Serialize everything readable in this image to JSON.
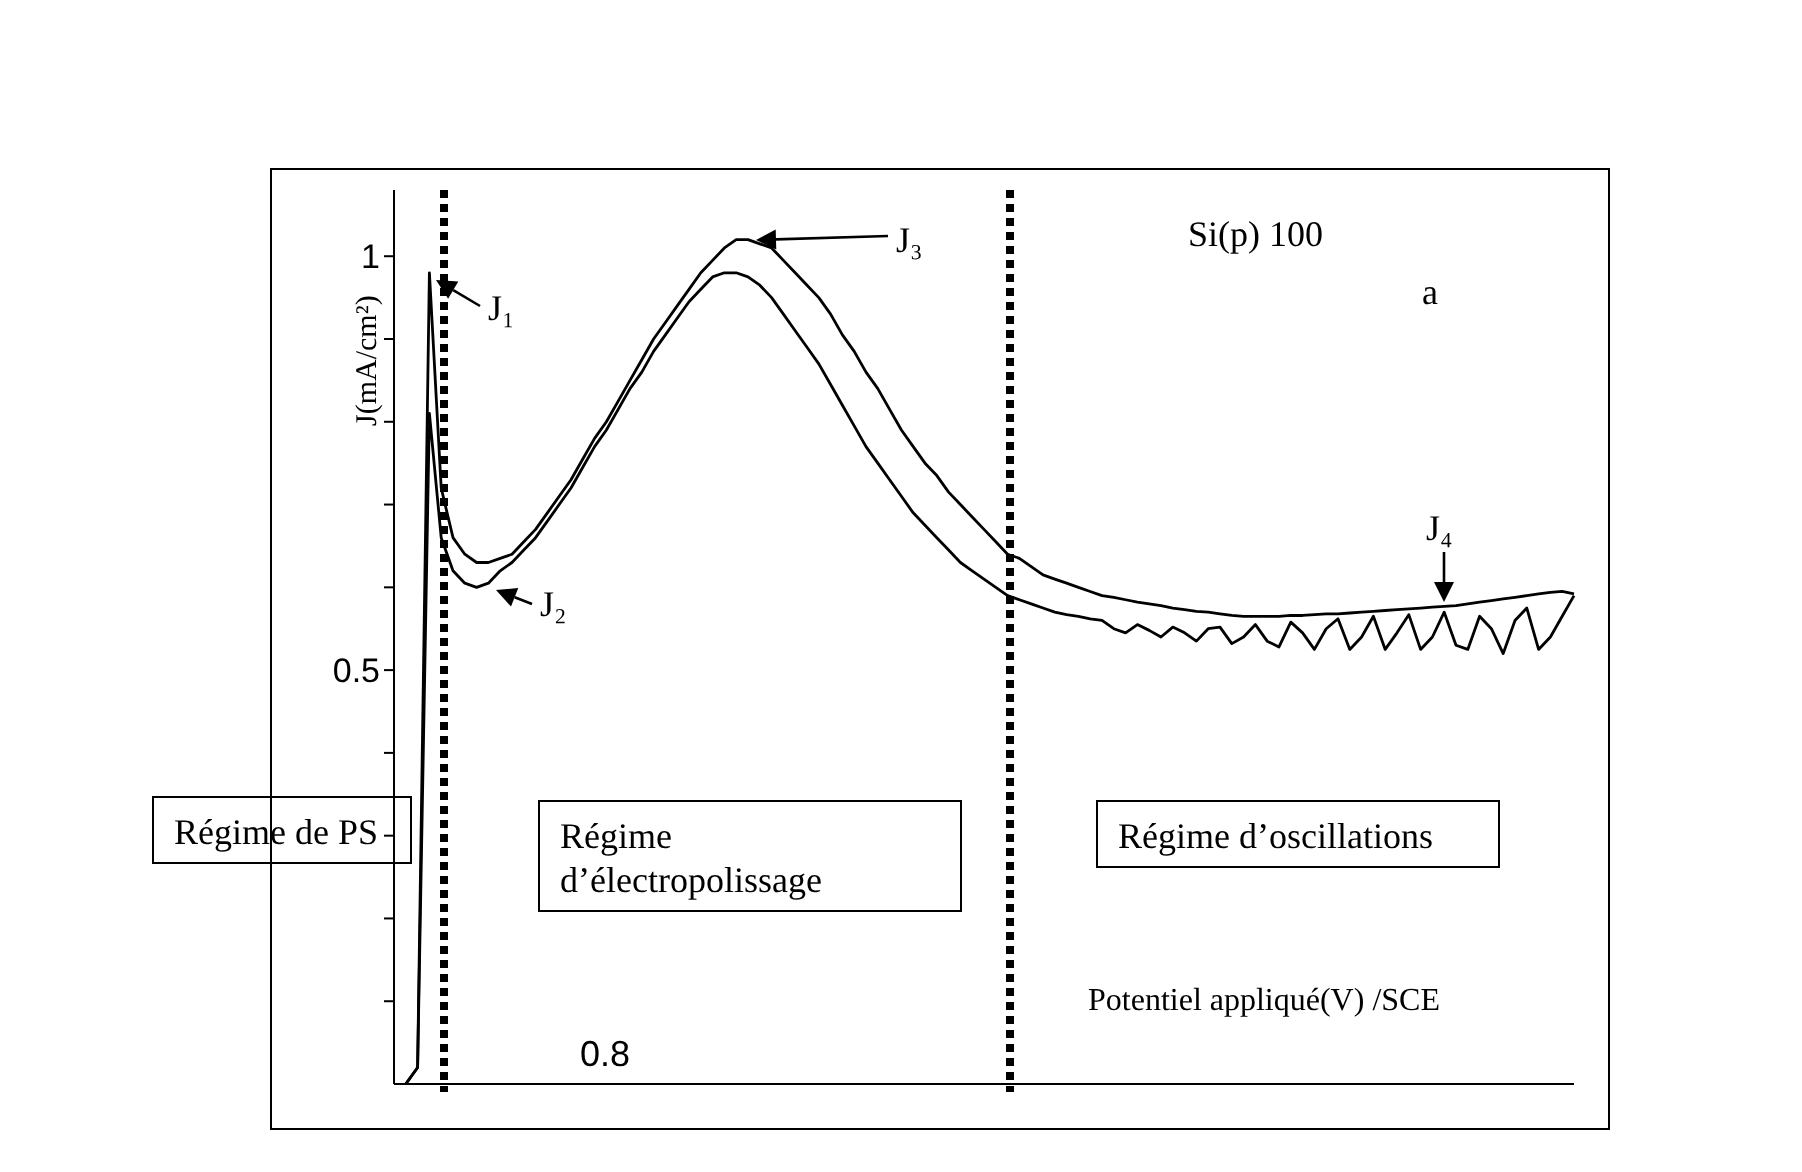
{
  "chart_data": {
    "type": "line",
    "xlabel": "Potentiel appliqué(V) /SCE",
    "ylabel": "J(mA/cm²)",
    "categories": [
      null,
      null,
      null,
      null,
      null,
      null,
      null,
      null,
      null,
      null,
      null,
      null,
      null,
      null,
      null,
      null,
      null,
      null,
      null,
      null,
      null,
      null,
      null,
      null,
      null,
      null,
      null,
      null,
      null,
      null,
      null,
      null,
      null,
      null,
      null,
      null,
      null,
      null,
      null,
      null,
      null,
      null,
      null,
      null,
      null,
      null,
      null,
      null,
      null,
      null,
      null,
      null,
      null,
      null,
      null,
      null,
      null,
      null,
      null,
      null,
      null,
      null,
      null,
      null,
      null,
      null,
      null,
      null,
      null,
      null,
      null,
      null,
      null,
      null,
      null,
      null,
      null,
      null,
      null,
      null,
      null,
      null,
      null,
      null,
      null,
      null,
      null,
      null,
      null,
      null,
      null,
      null,
      null,
      null,
      null,
      null,
      null,
      null,
      null,
      null,
      null
    ],
    "ylim": [
      0,
      1.08
    ],
    "yticks": [
      {
        "value": 0.1,
        "label": null
      },
      {
        "value": 0.2,
        "label": null
      },
      {
        "value": 0.3,
        "label": null
      },
      {
        "value": 0.4,
        "label": null
      },
      0.5,
      {
        "value": 0.6,
        "label": null
      },
      {
        "value": 0.7,
        "label": null
      },
      {
        "value": 0.8,
        "label": null
      },
      {
        "value": 0.9,
        "label": null
      },
      1
    ],
    "tick_labels": "y",
    "marker": "none",
    "line_style": "solid",
    "series": [
      {
        "color": "#000000",
        "values": [
          null,
          0,
          0.02,
          0.98,
          0.72,
          0.66,
          0.64,
          0.63,
          0.63,
          0.635,
          0.64,
          0.655,
          0.67,
          0.69,
          0.71,
          0.73,
          0.755,
          0.78,
          0.8,
          0.825,
          0.85,
          0.875,
          0.9,
          0.92,
          0.94,
          0.96,
          0.98,
          0.995,
          1.01,
          1.02,
          1.02,
          1.015,
          1.01,
          0.995,
          0.98,
          0.965,
          0.95,
          0.93,
          0.905,
          0.885,
          0.86,
          0.84,
          0.815,
          0.79,
          0.77,
          0.75,
          0.735,
          0.715,
          0.7,
          0.685,
          0.67,
          0.655,
          0.64,
          0.635,
          0.625,
          0.615,
          0.61,
          0.605,
          0.6,
          0.595,
          0.59,
          0.588,
          0.585,
          0.582,
          0.58,
          0.578,
          0.575,
          0.573,
          0.571,
          0.57,
          0.568,
          0.566,
          0.565,
          0.565,
          0.565,
          0.565,
          0.566,
          0.566,
          0.567,
          0.568,
          0.568,
          0.569,
          0.57,
          0.571,
          0.572,
          0.573,
          0.574,
          0.575,
          0.576,
          0.577,
          0.578,
          0.58,
          0.582,
          0.584,
          0.586,
          0.588,
          0.59,
          0.592,
          0.594,
          0.595,
          0.592
        ]
      },
      {
        "color": "#000000",
        "values": [
          null,
          0,
          0.02,
          0.81,
          0.66,
          0.62,
          0.605,
          0.6,
          0.605,
          0.62,
          0.63,
          0.645,
          0.66,
          0.68,
          0.7,
          0.72,
          0.745,
          0.77,
          0.79,
          0.815,
          0.84,
          0.86,
          0.885,
          0.905,
          0.925,
          0.945,
          0.96,
          0.975,
          0.98,
          0.98,
          0.975,
          0.965,
          0.95,
          0.93,
          0.91,
          0.89,
          0.87,
          0.845,
          0.82,
          0.795,
          0.77,
          0.75,
          0.73,
          0.71,
          0.69,
          0.675,
          0.66,
          0.645,
          0.63,
          0.62,
          0.61,
          0.6,
          0.59,
          0.585,
          0.58,
          0.575,
          0.57,
          0.567,
          0.565,
          0.562,
          0.56,
          0.55,
          0.545,
          0.555,
          0.548,
          0.54,
          0.552,
          0.545,
          0.535,
          0.55,
          0.552,
          0.532,
          0.54,
          0.555,
          0.535,
          0.528,
          0.558,
          0.545,
          0.525,
          0.55,
          0.562,
          0.525,
          0.54,
          0.565,
          0.525,
          0.545,
          0.567,
          0.525,
          0.54,
          0.57,
          0.53,
          0.525,
          0.565,
          0.55,
          0.52,
          0.56,
          0.575,
          0.525,
          0.54,
          0.565,
          0.59
        ]
      }
    ],
    "annotations": [
      "J₁",
      "J₂",
      "J₃",
      "J₄",
      "Si(p) 100",
      "a",
      "Régime de PS",
      "Régime d’électropolissage",
      "Régime d’oscillations",
      "0.8"
    ]
  }
}
